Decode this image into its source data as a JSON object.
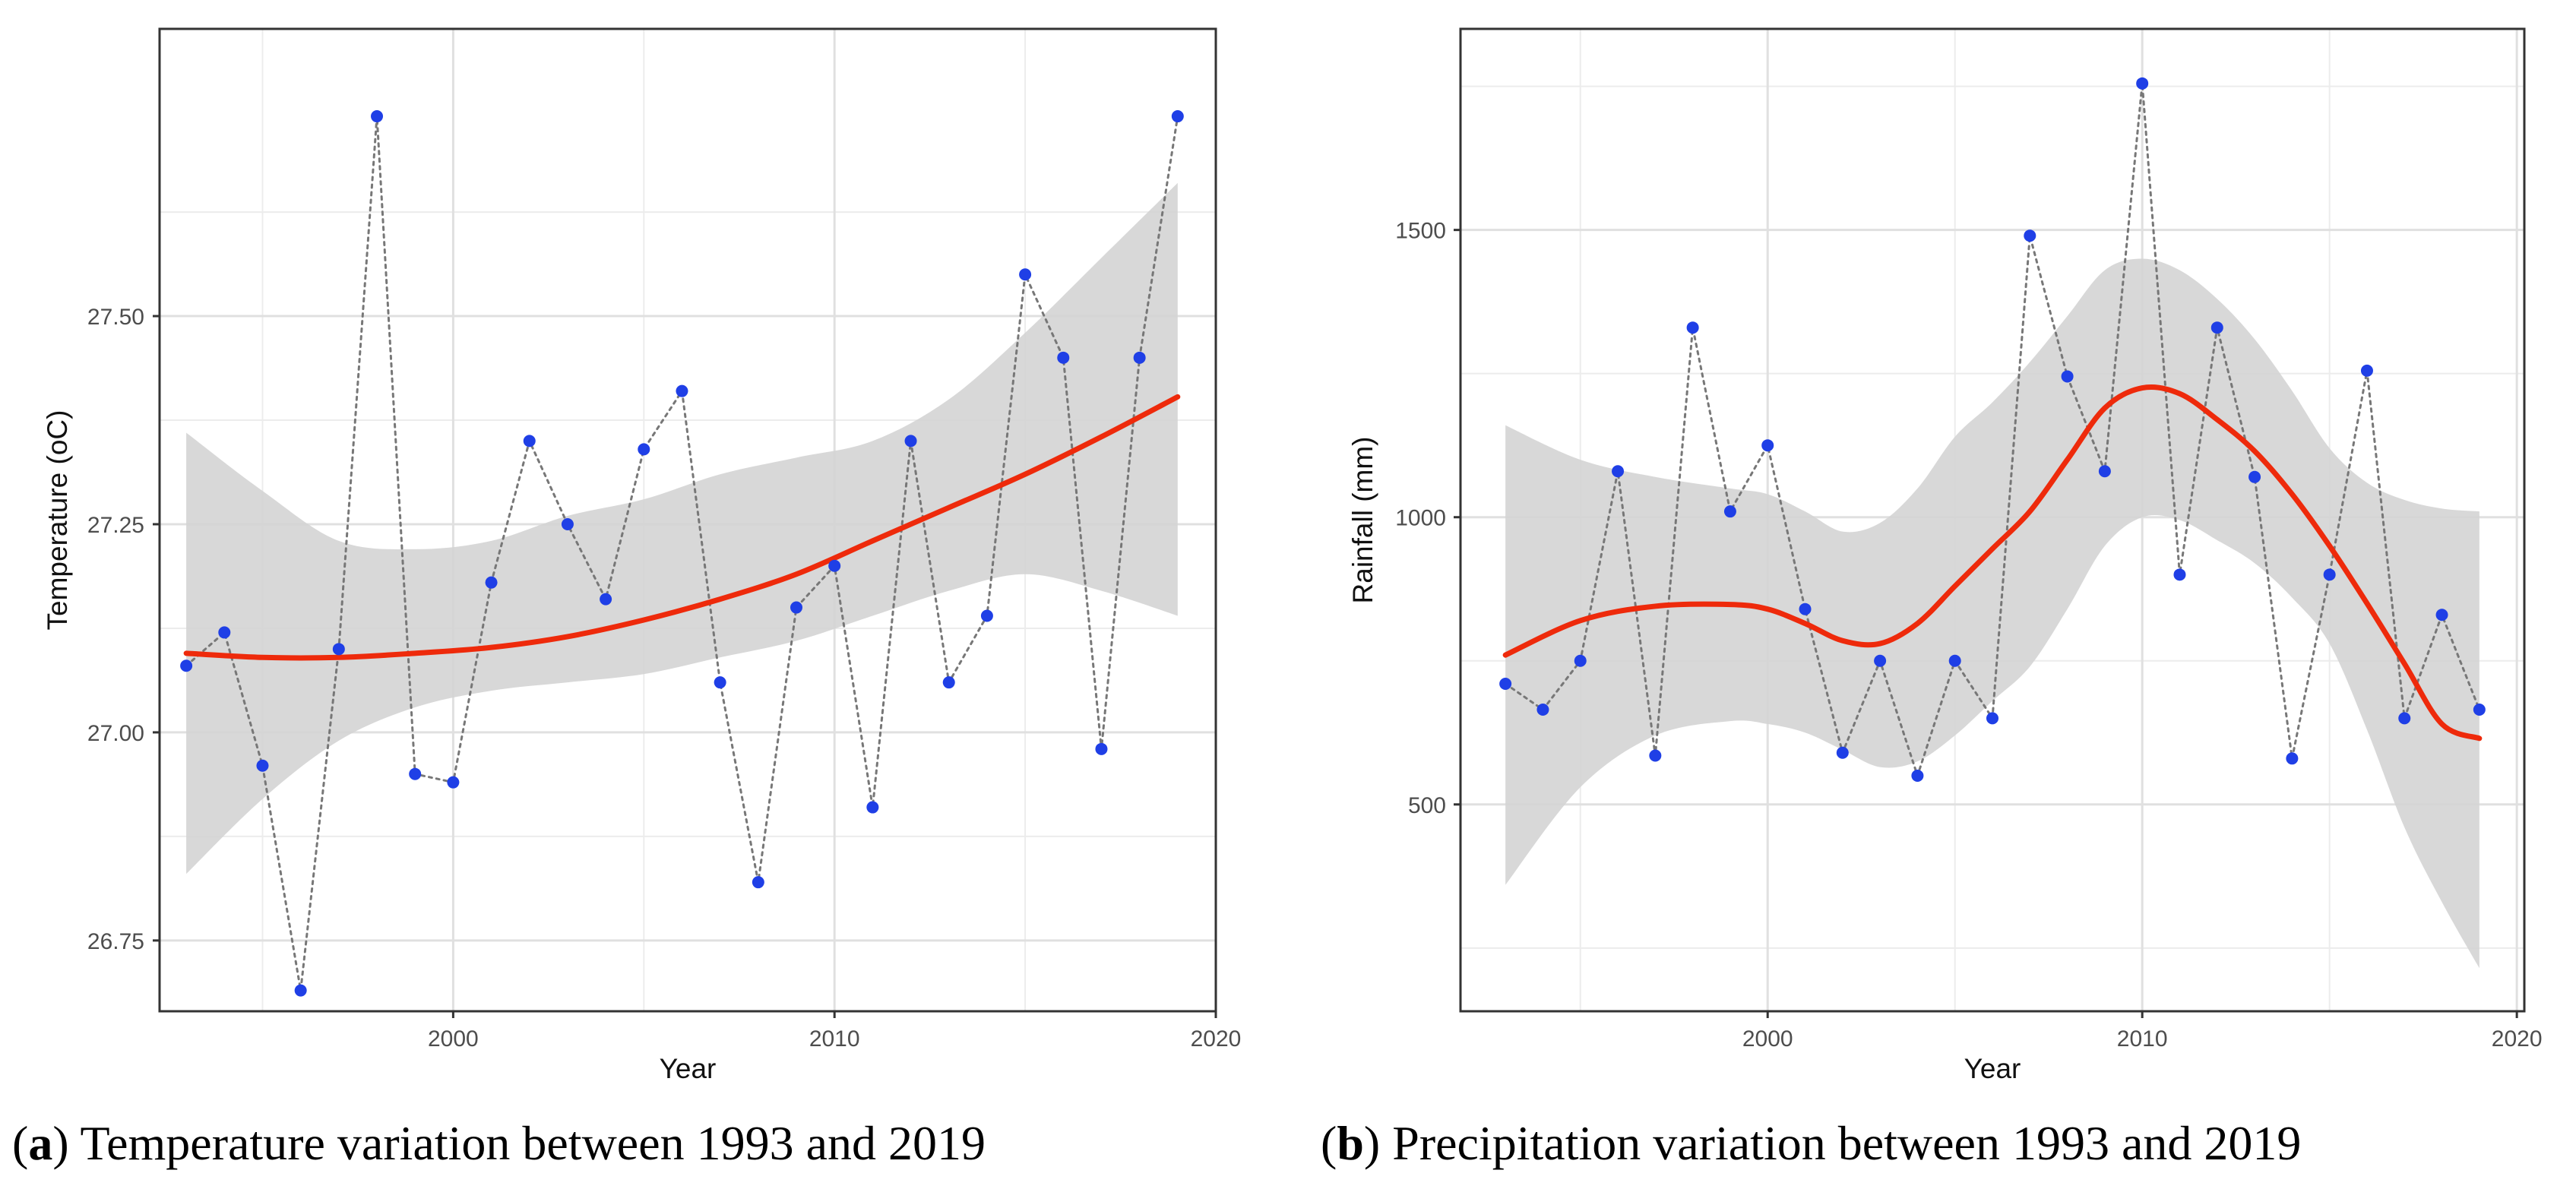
{
  "chart_data": [
    {
      "type": "scatter",
      "panel_letter": "a",
      "caption": "Temperature variation between 1993 and 2019",
      "xlabel": "Year",
      "ylabel": "Temperature (oC)",
      "xlim": [
        1992.3,
        2020.0
      ],
      "ylim": [
        26.665,
        27.845
      ],
      "xticks": [
        2000,
        2010,
        2020
      ],
      "xtick_labels": [
        "2000",
        "2010",
        "2020"
      ],
      "yticks": [
        26.75,
        27.0,
        27.25,
        27.5
      ],
      "ytick_labels": [
        "26.75",
        "27.00",
        "27.25",
        "27.50"
      ],
      "grid": true,
      "colors": {
        "points": "#1f3fe6",
        "fit": "#ee2a0b",
        "band": "#d4d4d4",
        "connector": "#777777"
      },
      "series": [
        {
          "x": [
            1993,
            1994,
            1995,
            1996,
            1997,
            1998,
            1999,
            2000,
            2001,
            2002,
            2003,
            2004,
            2005,
            2006,
            2007,
            2008,
            2009,
            2010,
            2011,
            2012,
            2013,
            2014,
            2015,
            2016,
            2017,
            2018,
            2019
          ],
          "values": [
            27.08,
            27.12,
            26.96,
            26.69,
            27.1,
            27.74,
            26.95,
            26.94,
            27.18,
            27.35,
            27.25,
            27.16,
            27.34,
            27.41,
            27.06,
            26.82,
            27.15,
            27.2,
            26.91,
            27.35,
            27.06,
            27.14,
            27.55,
            27.45,
            26.98,
            27.45,
            27.74
          ]
        }
      ],
      "fit": {
        "x": [
          1993,
          1995,
          1997,
          1999,
          2001,
          2003,
          2005,
          2007,
          2009,
          2011,
          2013,
          2015,
          2017,
          2019
        ],
        "y": [
          27.095,
          27.09,
          27.09,
          27.095,
          27.102,
          27.115,
          27.135,
          27.16,
          27.19,
          27.23,
          27.27,
          27.31,
          27.355,
          27.403
        ],
        "lower": [
          26.83,
          26.92,
          26.99,
          27.03,
          27.05,
          27.06,
          27.07,
          27.09,
          27.11,
          27.14,
          27.17,
          27.19,
          27.17,
          27.14
        ],
        "upper": [
          27.36,
          27.29,
          27.23,
          27.22,
          27.23,
          27.26,
          27.28,
          27.31,
          27.33,
          27.35,
          27.4,
          27.48,
          27.57,
          27.66
        ]
      }
    },
    {
      "type": "scatter",
      "panel_letter": "b",
      "caption": "Precipitation variation between 1993 and 2019",
      "xlabel": "Year",
      "ylabel": "Rainfall (mm)",
      "xlim": [
        1991.8,
        2020.2
      ],
      "ylim": [
        140,
        1850
      ],
      "xticks": [
        2000,
        2010,
        2020
      ],
      "xtick_labels": [
        "2000",
        "2010",
        "2020"
      ],
      "yticks": [
        500,
        1000,
        1500
      ],
      "ytick_labels": [
        "500",
        "1000",
        "1500"
      ],
      "grid": true,
      "colors": {
        "points": "#1f3fe6",
        "fit": "#ee2a0b",
        "band": "#d4d4d4",
        "connector": "#777777"
      },
      "series": [
        {
          "x": [
            1993,
            1994,
            1995,
            1996,
            1997,
            1998,
            1999,
            2000,
            2001,
            2002,
            2003,
            2004,
            2005,
            2006,
            2007,
            2008,
            2009,
            2010,
            2011,
            2012,
            2013,
            2014,
            2015,
            2016,
            2017,
            2018,
            2019
          ],
          "values": [
            710,
            665,
            750,
            1080,
            585,
            1330,
            1010,
            1125,
            840,
            590,
            750,
            550,
            750,
            650,
            1490,
            1245,
            1080,
            1755,
            900,
            1330,
            1070,
            580,
            900,
            1255,
            650,
            830,
            665
          ]
        }
      ],
      "fit": {
        "x": [
          1993,
          1995,
          1997,
          1999,
          2000,
          2001,
          2002,
          2003,
          2004,
          2005,
          2006,
          2007,
          2008,
          2009,
          2010,
          2011,
          2012,
          2013,
          2014,
          2015,
          2016,
          2017,
          2018,
          2019
        ],
        "y": [
          760,
          820,
          845,
          848,
          840,
          815,
          785,
          780,
          815,
          880,
          945,
          1010,
          1100,
          1190,
          1225,
          1215,
          1170,
          1115,
          1040,
          950,
          850,
          745,
          640,
          615
        ],
        "lower": [
          360,
          530,
          620,
          645,
          640,
          625,
          595,
          565,
          575,
          620,
          680,
          740,
          840,
          950,
          1000,
          995,
          960,
          920,
          860,
          780,
          630,
          460,
          330,
          215
        ],
        "upper": [
          1160,
          1100,
          1070,
          1050,
          1040,
          1010,
          975,
          990,
          1050,
          1140,
          1200,
          1270,
          1350,
          1430,
          1450,
          1430,
          1380,
          1310,
          1220,
          1120,
          1060,
          1030,
          1015,
          1010
        ]
      }
    }
  ]
}
